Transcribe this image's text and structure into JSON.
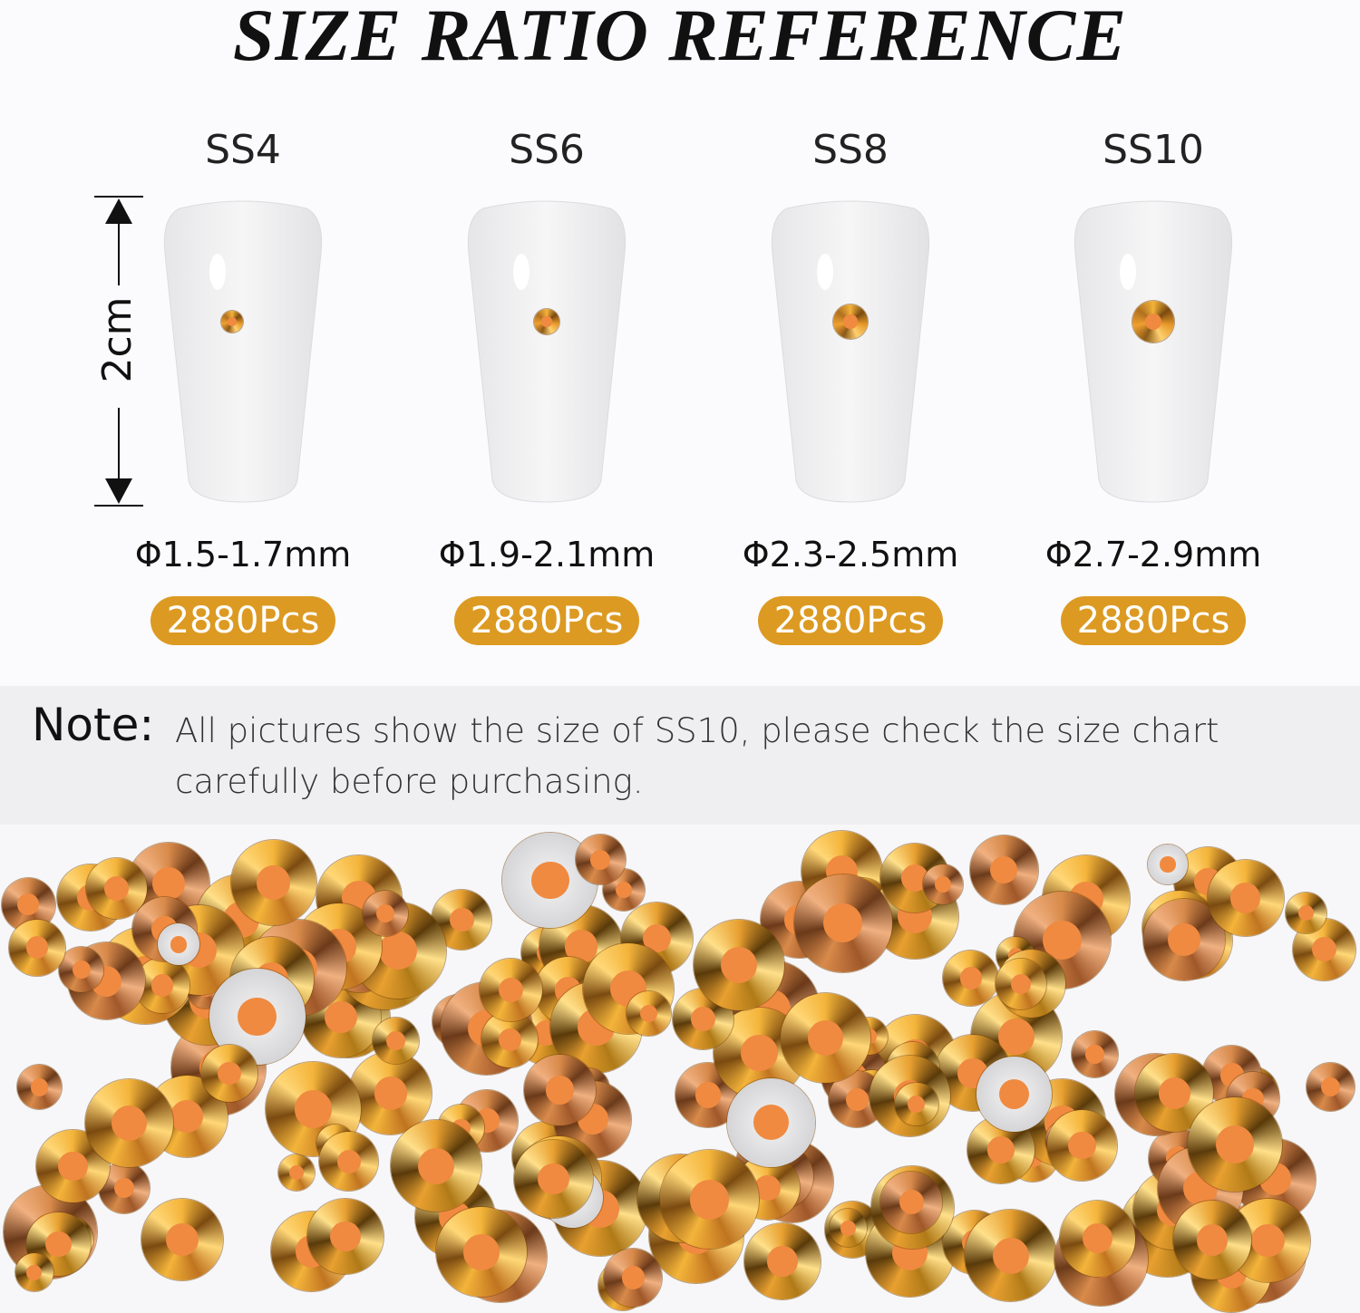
{
  "title": "SIZE RATIO REFERENCE",
  "ruler_label": "2cm",
  "sizes": [
    {
      "name": "SS4",
      "diameter": "Φ1.5-1.7mm",
      "count": "2880Pcs"
    },
    {
      "name": "SS6",
      "diameter": "Φ1.9-2.1mm",
      "count": "2880Pcs"
    },
    {
      "name": "SS8",
      "diameter": "Φ2.3-2.5mm",
      "count": "2880Pcs"
    },
    {
      "name": "SS10",
      "diameter": "Φ2.7-2.9mm",
      "count": "2880Pcs"
    }
  ],
  "note": {
    "label": "Note:",
    "text": "All pictures show the size of SS10, please check the size chart carefully before purchasing."
  },
  "colors": {
    "badge": "#dc9a22",
    "note_band": "#efeff2",
    "gem_gold": "#e0a030"
  }
}
